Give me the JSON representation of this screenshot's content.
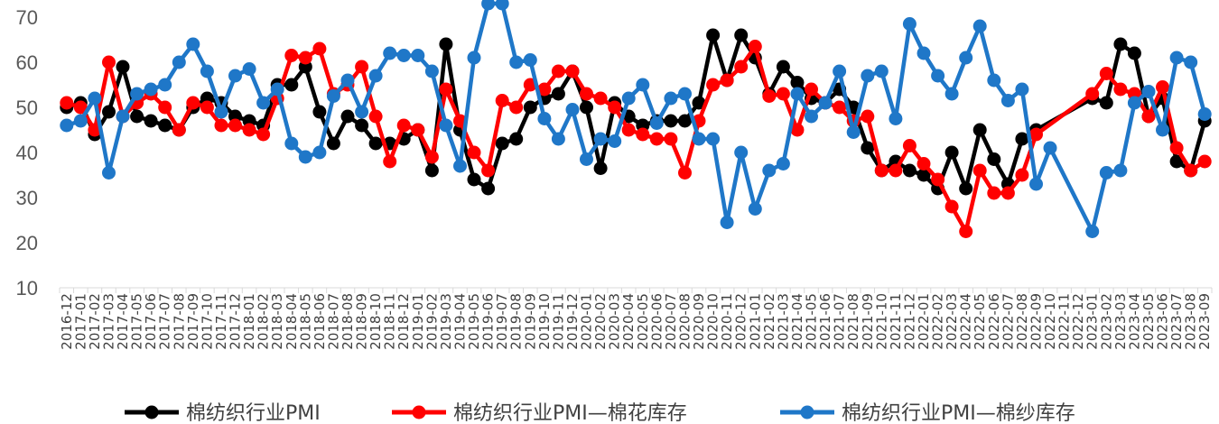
{
  "chart_data": {
    "type": "line",
    "title": "",
    "xlabel": "",
    "ylabel": "",
    "ylim": [
      10,
      70
    ],
    "yticks": [
      10,
      20,
      30,
      40,
      50,
      60,
      70
    ],
    "grid": false,
    "legend_position": "bottom",
    "x": [
      "2016-12",
      "2017-01",
      "2017-02",
      "2017-03",
      "2017-04",
      "2017-05",
      "2017-06",
      "2017-07",
      "2017-08",
      "2017-09",
      "2017-10",
      "2017-11",
      "2017-12",
      "2018-01",
      "2018-02",
      "2018-03",
      "2018-04",
      "2018-05",
      "2018-06",
      "2018-07",
      "2018-08",
      "2018-09",
      "2018-10",
      "2018-11",
      "2018-12",
      "2019-01",
      "2019-02",
      "2019-03",
      "2019-04",
      "2019-05",
      "2019-06",
      "2019-07",
      "2019-08",
      "2019-09",
      "2019-10",
      "2019-11",
      "2019-12",
      "2020-01",
      "2020-02",
      "2020-03",
      "2020-04",
      "2020-05",
      "2020-06",
      "2020-07",
      "2020-08",
      "2020-09",
      "2020-10",
      "2020-11",
      "2020-12",
      "2021-01",
      "2021-02",
      "2021-03",
      "2021-04",
      "2021-05",
      "2021-06",
      "2021-07",
      "2021-08",
      "2021-09",
      "2021-10",
      "2021-11",
      "2021-12",
      "2022-01",
      "2022-02",
      "2022-03",
      "2022-04",
      "2022-05",
      "2022-06",
      "2022-07",
      "2022-08",
      "2022-09",
      "2022-10",
      "2022-11",
      "2022-12",
      "2023-01",
      "2023-02",
      "2023-03",
      "2023-04",
      "2023-05",
      "2023-06",
      "2023-07",
      "2023-08",
      "2023-09"
    ],
    "x_tick_labels": [
      "2016-12",
      "2017-01",
      "2017-02",
      "2017-03",
      "2017-04",
      "2017-05",
      "2017-06",
      "2017-07",
      "2017-08",
      "2017-09",
      "2017-10",
      "2017-11",
      "2017-12",
      "2018-01",
      "2018-02",
      "2018-03",
      "2018-04",
      "2018-05",
      "2018-06",
      "2018-07",
      "2018-08",
      "2018-09",
      "2018-10",
      "2018-11",
      "2018-12",
      "2019-01",
      "2019-02",
      "2019-03",
      "2019-04",
      "2019-05",
      "2019-06",
      "2019-07",
      "2019-08",
      "2019-09",
      "2019-10",
      "2019-11",
      "2019-12",
      "2020-01",
      "2020-02",
      "2020-03",
      "2020-04",
      "2020-05",
      "2020-06",
      "2020-07",
      "2020-08",
      "2020-09",
      "2020-10",
      "2020-11",
      "2020-12",
      "2021-01",
      "2021-02",
      "2021-03",
      "2021-04",
      "2021-05",
      "2021-06",
      "2021-07",
      "2021-08",
      "2021-09",
      "2021-10",
      "2021-11",
      "2021-12",
      "2022-01",
      "2022-02",
      "2022-03",
      "2022-04",
      "2022-05",
      "2022-06",
      "2022-07",
      "2022-08",
      "2022-09",
      "2022-10",
      "2022-11",
      "2022-12",
      "2023-01",
      "2023-02",
      "2023-03",
      "2023-04",
      "2023-05",
      "2023-06",
      "2023-07",
      "2023-08",
      "2023-09"
    ],
    "series": [
      {
        "name": "棉纺织行业PMI",
        "color": "#000000",
        "values": [
          50,
          51,
          44,
          49,
          59,
          48,
          47,
          46,
          45,
          50,
          52,
          51,
          48,
          47,
          46,
          55,
          55,
          59,
          49,
          42,
          48,
          46,
          42,
          42,
          43,
          45,
          36,
          64,
          45,
          34,
          32,
          42,
          43,
          50,
          52,
          53,
          58,
          50,
          36.5,
          51,
          48,
          46,
          47,
          47,
          47,
          51,
          66,
          56,
          66,
          61,
          53,
          59,
          55.5,
          52,
          51,
          54,
          50,
          41,
          36,
          38,
          36,
          35,
          32,
          40,
          32,
          45,
          38.5,
          33,
          43,
          45,
          null,
          null,
          null,
          52,
          51,
          64,
          62,
          48,
          52,
          38,
          36,
          47
        ],
        "markers": [
          1,
          1,
          1,
          1,
          1,
          1,
          1,
          1,
          1,
          1,
          1,
          1,
          1,
          1,
          1,
          1,
          1,
          1,
          1,
          1,
          1,
          1,
          1,
          1,
          1,
          1,
          1,
          1,
          1,
          1,
          1,
          1,
          1,
          1,
          1,
          1,
          1,
          1,
          1,
          1,
          1,
          1,
          1,
          1,
          1,
          1,
          1,
          1,
          1,
          1,
          1,
          1,
          1,
          1,
          1,
          1,
          1,
          1,
          1,
          1,
          1,
          1,
          1,
          1,
          1,
          1,
          1,
          1,
          1,
          1,
          0,
          0,
          0,
          1,
          1,
          1,
          1,
          1,
          1,
          1,
          1,
          1
        ]
      },
      {
        "name": "棉纺织行业PMI—棉花库存",
        "color": "#ff0000",
        "values": [
          51,
          50,
          45,
          60,
          48,
          51,
          53,
          50,
          45,
          51,
          50,
          46,
          46,
          45,
          44,
          52,
          61.5,
          61,
          63,
          53,
          55,
          59,
          48,
          38,
          46,
          45,
          39,
          54,
          47,
          40,
          36,
          51.5,
          50,
          55,
          54,
          58,
          58,
          53,
          52,
          50,
          45,
          44,
          43,
          43,
          35.5,
          47,
          55,
          56,
          59,
          63.5,
          52.5,
          53,
          45,
          54,
          51,
          50,
          47,
          48,
          36,
          36,
          41.5,
          37.5,
          34,
          28,
          22.5,
          36,
          31,
          31,
          35,
          44,
          null,
          null,
          null,
          53,
          57.5,
          54,
          53,
          48,
          54.5,
          41,
          36,
          38
        ],
        "markers": [
          1,
          1,
          1,
          1,
          1,
          1,
          1,
          1,
          1,
          1,
          1,
          1,
          1,
          1,
          1,
          1,
          1,
          1,
          1,
          1,
          1,
          1,
          1,
          1,
          1,
          1,
          1,
          1,
          1,
          1,
          1,
          1,
          1,
          1,
          1,
          1,
          1,
          1,
          1,
          1,
          1,
          1,
          1,
          1,
          1,
          1,
          1,
          1,
          1,
          1,
          1,
          1,
          1,
          1,
          1,
          1,
          1,
          1,
          1,
          1,
          1,
          1,
          1,
          1,
          1,
          1,
          1,
          1,
          1,
          1,
          0,
          0,
          0,
          1,
          1,
          1,
          1,
          1,
          1,
          1,
          1,
          1
        ]
      },
      {
        "name": "棉纺织行业PMI—棉纱库存",
        "color": "#1f77c8",
        "values": [
          46,
          47,
          52,
          35.5,
          48,
          53,
          54,
          55,
          60,
          64,
          58,
          49,
          57,
          58.5,
          51,
          54,
          42,
          39,
          40,
          52.5,
          56,
          49,
          57,
          62,
          61.5,
          61.5,
          58,
          46,
          37,
          61,
          73,
          73,
          60,
          60.5,
          47.5,
          43,
          49.5,
          38.5,
          43,
          42.5,
          52,
          55,
          46.5,
          52,
          53,
          43,
          43,
          24.5,
          40,
          27.5,
          36,
          37.5,
          53,
          48,
          51,
          58,
          44.5,
          57,
          58,
          47.5,
          68.5,
          62,
          57,
          53,
          61,
          68,
          56,
          51.5,
          54,
          33,
          41,
          null,
          null,
          22.5,
          35.5,
          36,
          51,
          53.5,
          45,
          61,
          60,
          48.5
        ],
        "markers": [
          1,
          1,
          1,
          1,
          1,
          1,
          1,
          1,
          1,
          1,
          1,
          1,
          1,
          1,
          1,
          1,
          1,
          1,
          1,
          1,
          1,
          1,
          1,
          1,
          1,
          1,
          1,
          1,
          1,
          1,
          1,
          1,
          1,
          1,
          1,
          1,
          1,
          1,
          1,
          1,
          1,
          1,
          1,
          1,
          1,
          1,
          1,
          1,
          1,
          1,
          1,
          1,
          1,
          1,
          1,
          1,
          1,
          1,
          1,
          1,
          1,
          1,
          1,
          1,
          1,
          1,
          1,
          1,
          1,
          1,
          1,
          0,
          0,
          1,
          1,
          1,
          1,
          1,
          1,
          1,
          1,
          1
        ]
      }
    ]
  }
}
